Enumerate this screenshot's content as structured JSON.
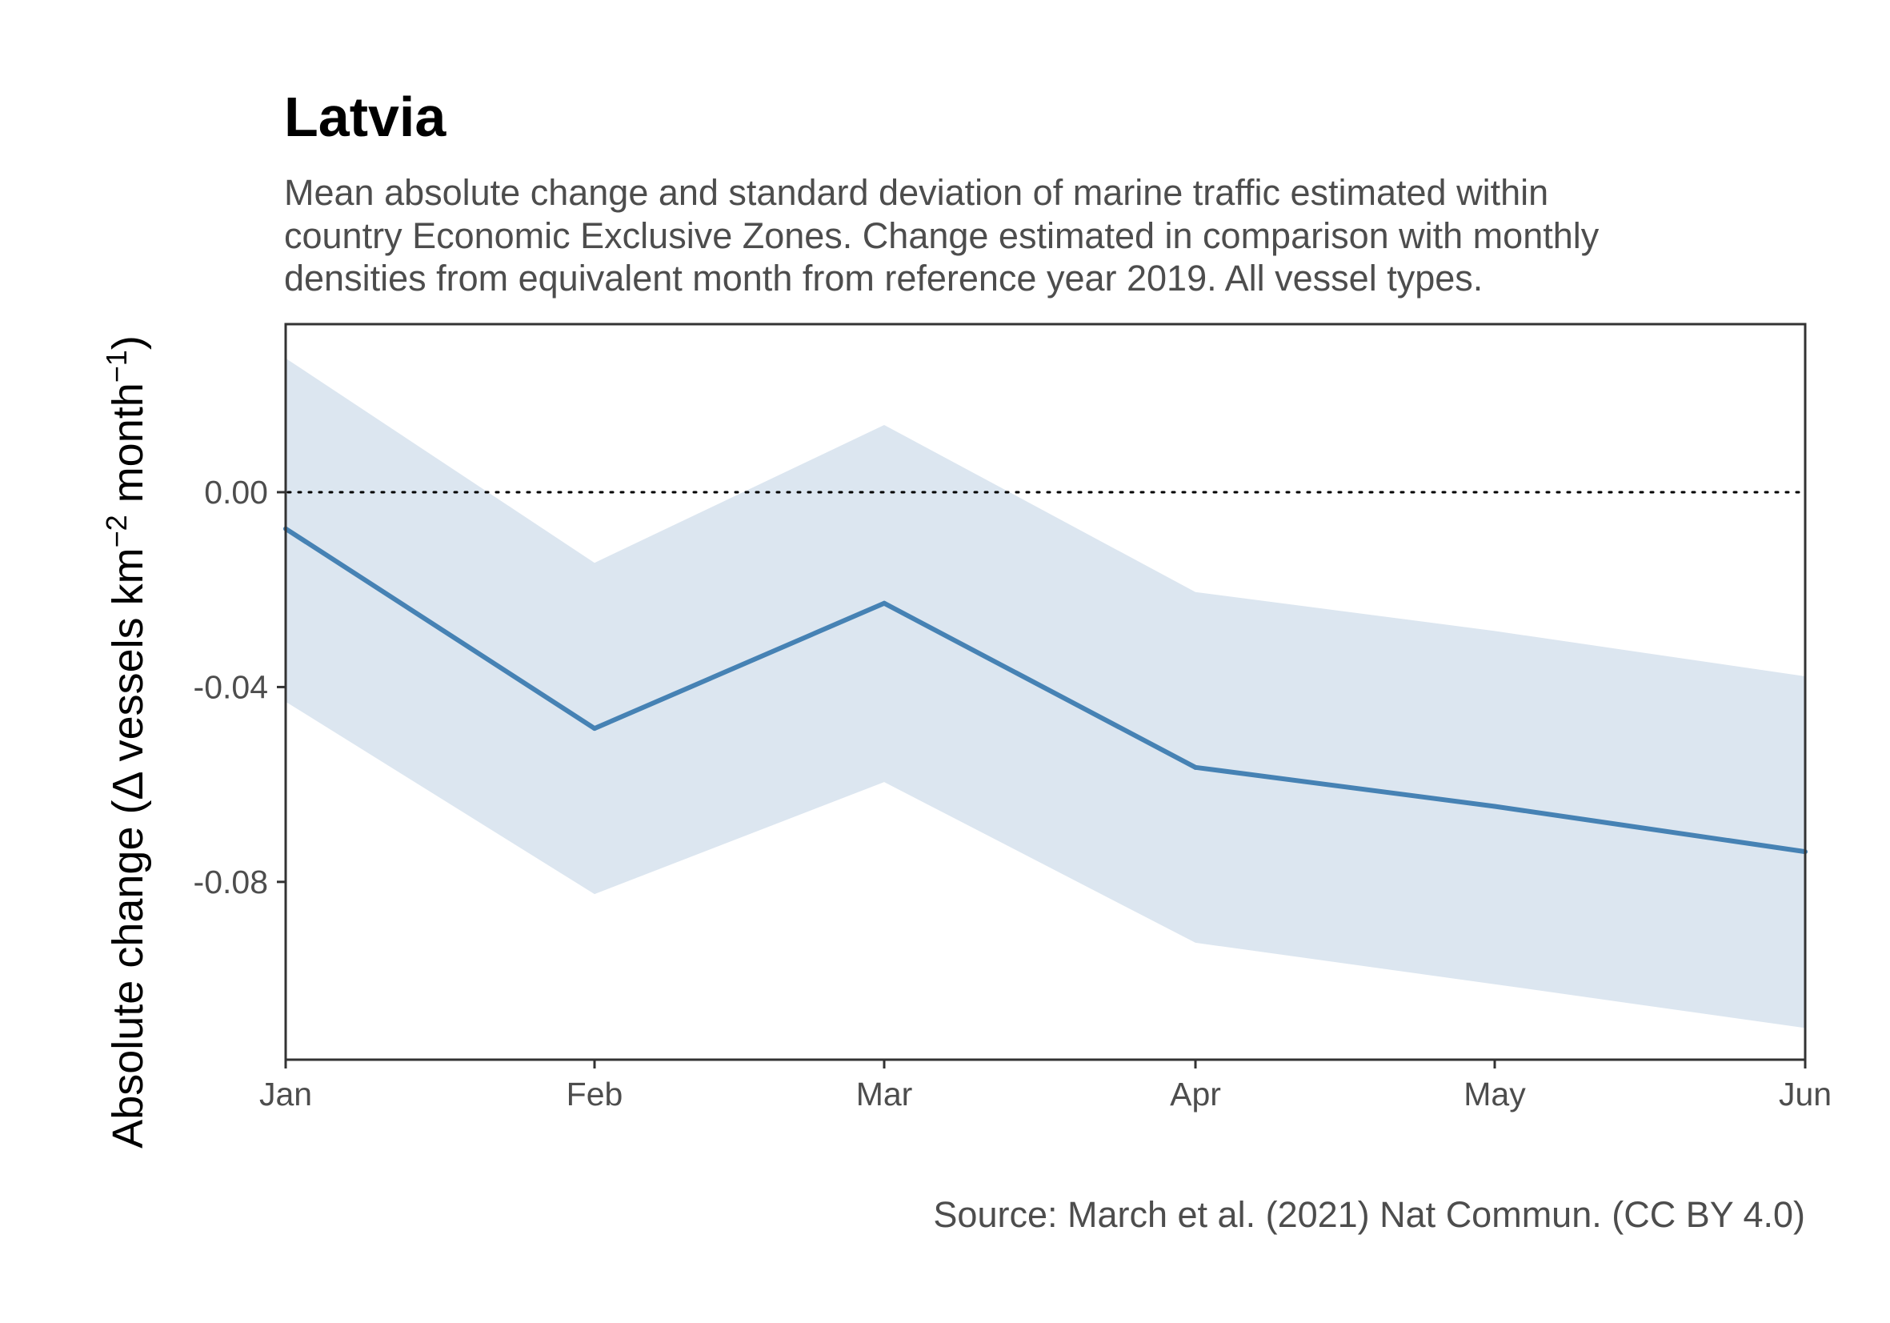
{
  "chart_data": {
    "type": "area",
    "title": "Latvia",
    "subtitle_lines": [
      "Mean absolute change and standard deviation of marine traffic estimated within",
      "country Economic Exclusive Zones. Change estimated in comparison with monthly",
      "densities from equivalent month from reference year 2019. All vessel types."
    ],
    "ylabel": {
      "prefix": "Absolute change (",
      "delta": "Δ",
      "unit_text": " vessels km",
      "unit_exp1": "−2",
      "unit_month": " month",
      "unit_exp2": "−1",
      "suffix": ")"
    },
    "caption": "Source: March et al. (2021) Nat Commun. (CC BY 4.0)",
    "categories": [
      "Jan",
      "Feb",
      "Mar",
      "Apr",
      "May",
      "Jun"
    ],
    "series": [
      {
        "values": [
          -0.0075,
          -0.0485,
          -0.0228,
          -0.0565,
          -0.0645,
          -0.0738
        ],
        "lower": [
          -0.043,
          -0.0825,
          -0.0595,
          -0.0925,
          -0.101,
          -0.11
        ],
        "upper": [
          0.0275,
          -0.0145,
          0.0138,
          -0.0205,
          -0.0285,
          -0.0378
        ]
      }
    ],
    "yticks": [
      {
        "value": 0.0,
        "label": "0.00"
      },
      {
        "value": -0.04,
        "label": "-0.04"
      },
      {
        "value": -0.08,
        "label": "-0.08"
      }
    ],
    "ylim": [
      -0.1165,
      0.0345
    ],
    "reference_line": 0.0,
    "grid": false,
    "colors": {
      "line": "#4682b4",
      "ribbon": "#dce6f0",
      "panel_border": "#333333",
      "reference": "#000000"
    }
  }
}
